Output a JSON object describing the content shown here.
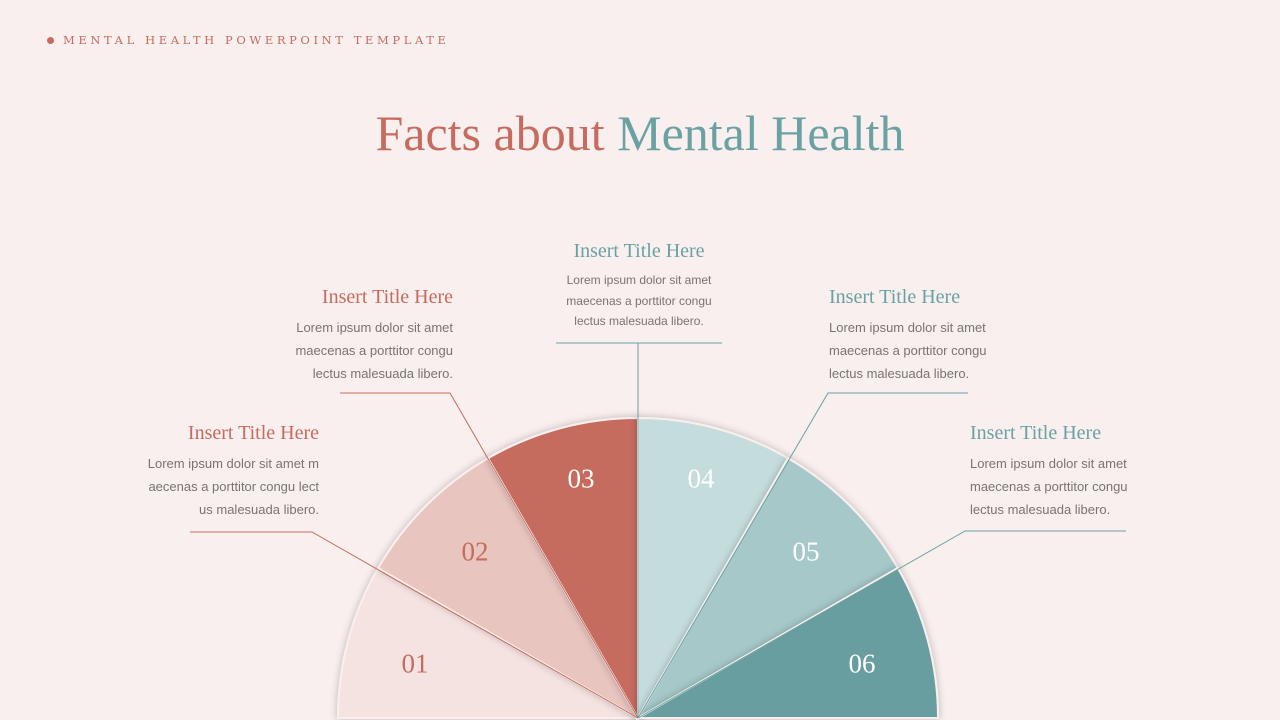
{
  "header": {
    "eyebrow": "MENTAL HEALTH POWERPOINT TEMPLATE"
  },
  "title": {
    "part1": "Facts about",
    "part2": "Mental Health"
  },
  "colors": {
    "coral": "#c66c5f",
    "teal": "#6aa2a3",
    "background": "#f9efee",
    "body_text": "#7b7272"
  },
  "segments": [
    {
      "number": "01",
      "fill": "#f5e3e1",
      "label_color": "#c66c5f",
      "title": "Insert Title Here",
      "body": "Lorem ipsum dolor sit amet m aecenas a porttitor congu lect us malesuada libero."
    },
    {
      "number": "02",
      "fill": "#e9c5bf",
      "label_color": "#c66c5f",
      "title": "Insert Title Here",
      "body": "Lorem ipsum dolor sit amet maecenas a porttitor congu lectus malesuada libero."
    },
    {
      "number": "03",
      "fill": "#c66c5f",
      "label_color": "#ffffff",
      "title": "Insert Title Here",
      "body": "Lorem  ipsum dolor sit amet maecenas a porttitor congu lectus malesuada libero."
    },
    {
      "number": "04",
      "fill": "#c5dcdd",
      "label_color": "#ffffff",
      "title": "Insert Title Here",
      "body": "Lorem ipsum dolor sit amet maecenas a porttitor congu lectus malesuada libero."
    },
    {
      "number": "05",
      "fill": "#a6c8c9",
      "label_color": "#ffffff",
      "title": "Insert Title Here",
      "body": "Lorem ipsum dolor sit amet maecenas a porttitor congu lectus malesuada libero."
    },
    {
      "number": "06",
      "fill": "#679e9f",
      "label_color": "#ffffff",
      "title": "Insert Title Here",
      "body": "Lorem ipsum dolor sit amet maecenas a porttitor congu lectus malesuada libero."
    }
  ]
}
